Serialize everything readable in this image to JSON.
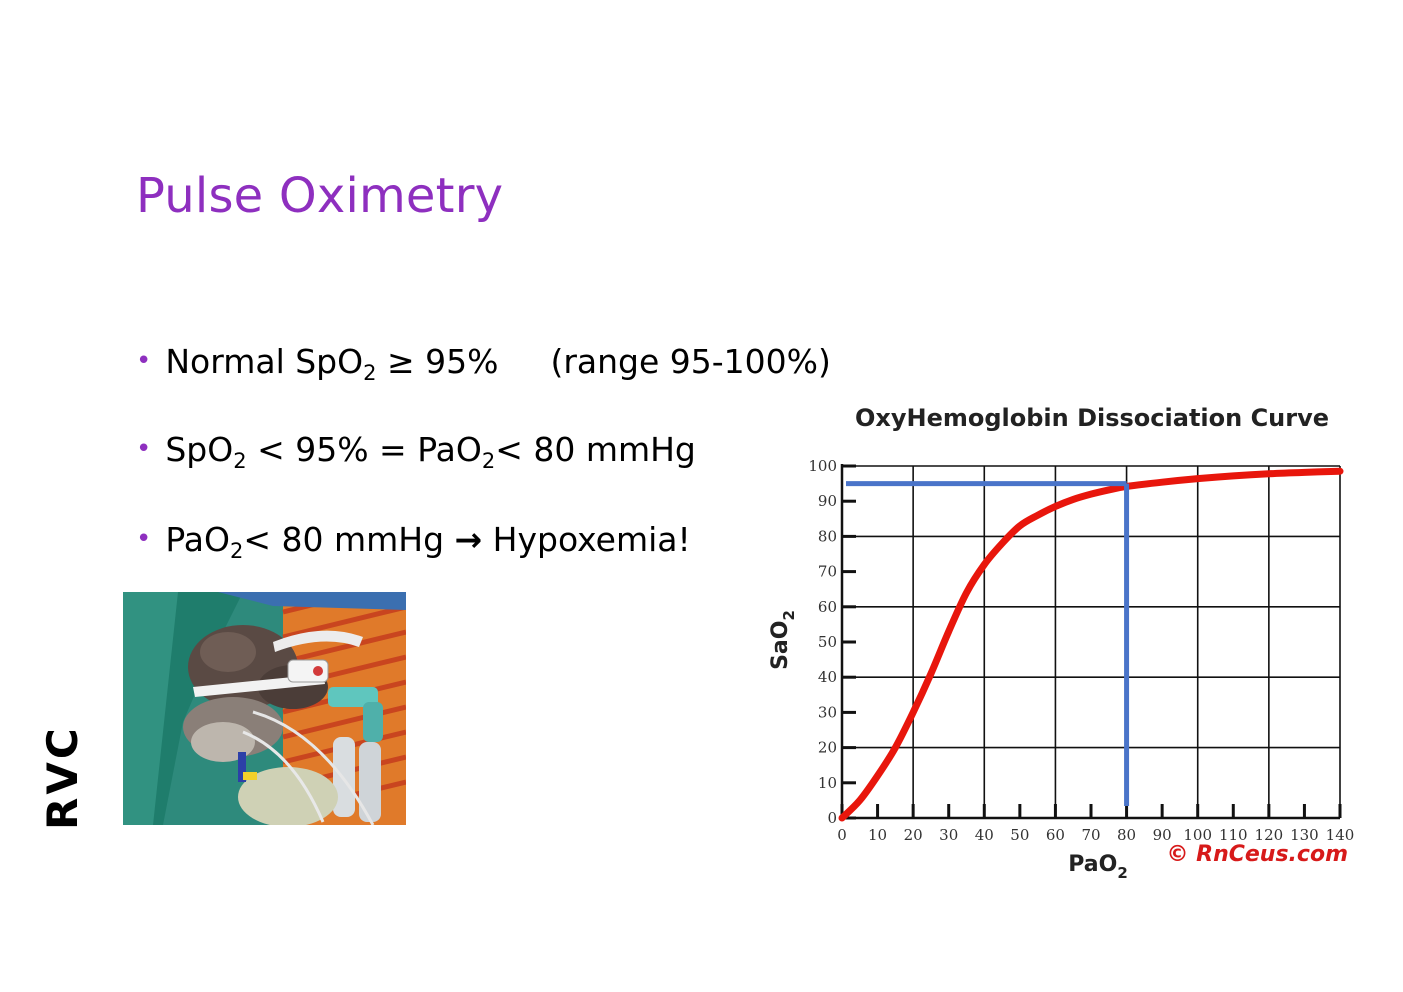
{
  "slide": {
    "title": "Pulse Oximetry",
    "side_label": "RVC"
  },
  "bullets": [
    {
      "parts": [
        "Normal SpO",
        "2",
        "  ≥ 95%",
        "(range 95-100%)"
      ]
    },
    {
      "parts": [
        "SpO",
        "2",
        " < 95% = PaO",
        "2",
        "< 80 mmHg"
      ]
    },
    {
      "parts": [
        "PaO",
        "2",
        "< 80 mmHg ",
        "→",
        " Hypoxemia!"
      ]
    }
  ],
  "colors": {
    "title": "#8e2fbf",
    "bullet_dot": "#8e2fbf",
    "curve": "#e8160c",
    "marker": "#4a74c9"
  },
  "chart_data": {
    "type": "line",
    "title": "OxyHemoglobin Dissociation Curve",
    "xlabel_main": "PaO",
    "xlabel_sub": "2",
    "ylabel_main": "SaO",
    "ylabel_sub": "2",
    "credit": "© RnCeus.com",
    "xlim": [
      0,
      140
    ],
    "ylim": [
      0,
      100
    ],
    "x_ticks": [
      "0",
      "10",
      "20",
      "30",
      "40",
      "50",
      "60",
      "70",
      "80",
      "90",
      "100",
      "110",
      "120",
      "130",
      "140"
    ],
    "y_ticks": [
      "0",
      "10",
      "20",
      "30",
      "40",
      "50",
      "60",
      "70",
      "80",
      "90",
      "100"
    ],
    "grid": true,
    "series": [
      {
        "x": [
          0,
          5,
          10,
          15,
          20,
          25,
          30,
          35,
          40,
          45,
          50,
          55,
          60,
          65,
          70,
          75,
          80,
          90,
          100,
          110,
          120,
          130,
          140
        ],
        "values": [
          0,
          5,
          12,
          20,
          30,
          41,
          53,
          64,
          72,
          78,
          83,
          86,
          88.5,
          90.5,
          92,
          93.2,
          94.2,
          95.4,
          96.4,
          97.2,
          97.8,
          98.2,
          98.5
        ]
      }
    ],
    "marker": {
      "x": 80,
      "y": 95
    }
  }
}
